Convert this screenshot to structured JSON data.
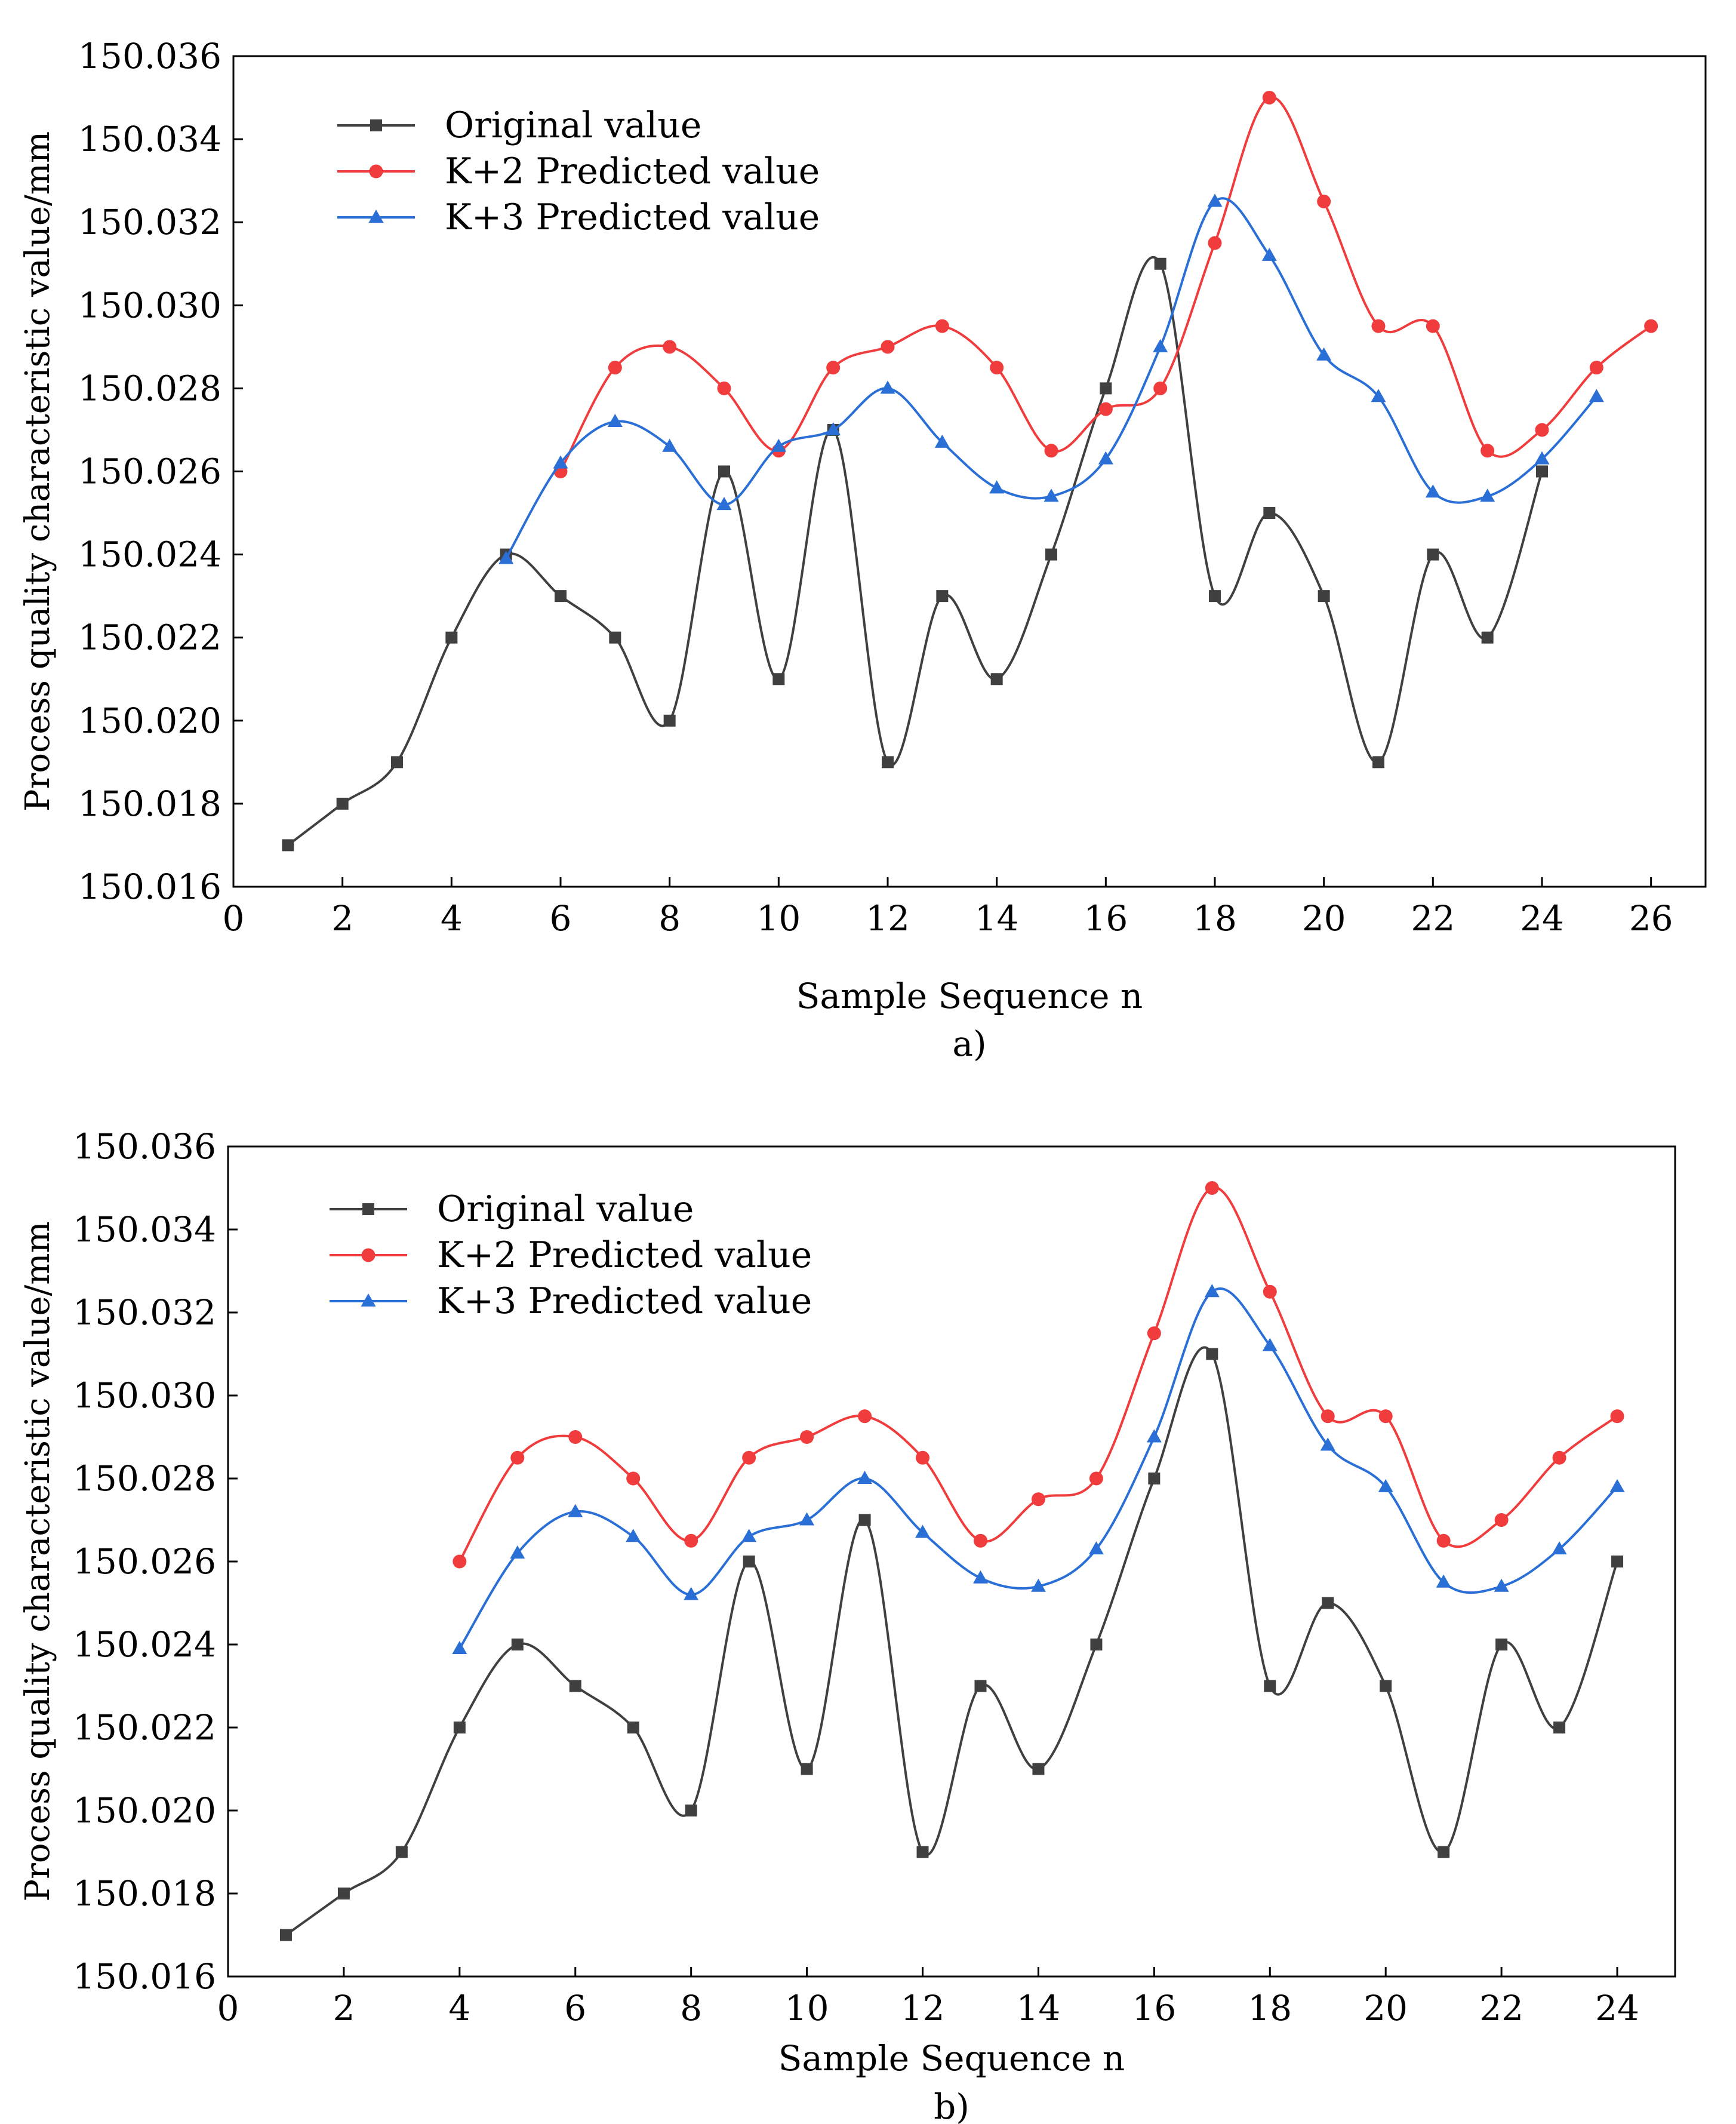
{
  "chart_data": [
    {
      "type": "line",
      "panel_label": "a)",
      "xlabel": "Sample Sequence n",
      "ylabel": "Process quality characteristic value/mm",
      "xlim": [
        0,
        27
      ],
      "ylim": [
        150.016,
        150.036
      ],
      "xticks": [
        0,
        2,
        4,
        6,
        8,
        10,
        12,
        14,
        16,
        18,
        20,
        22,
        24,
        26
      ],
      "yticks": [
        150.016,
        150.018,
        150.02,
        150.022,
        150.024,
        150.026,
        150.028,
        150.03,
        150.032,
        150.034,
        150.036
      ],
      "xtick_labels": [
        "0",
        "2",
        "4",
        "6",
        "8",
        "10",
        "12",
        "14",
        "16",
        "18",
        "20",
        "22",
        "24",
        "26"
      ],
      "ytick_labels": [
        "150.016",
        "150.018",
        "150.020",
        "150.022",
        "150.024",
        "150.026",
        "150.028",
        "150.030",
        "150.032",
        "150.034",
        "150.036"
      ],
      "legend_position": "top-left",
      "series": [
        {
          "name": "Original value",
          "color": "#404040",
          "marker": "square",
          "x": [
            1,
            2,
            3,
            4,
            5,
            6,
            7,
            8,
            9,
            10,
            11,
            12,
            13,
            14,
            15,
            16,
            17,
            18,
            19,
            20,
            21,
            22,
            23,
            24
          ],
          "values": [
            150.017,
            150.018,
            150.019,
            150.022,
            150.024,
            150.023,
            150.022,
            150.02,
            150.026,
            150.021,
            150.027,
            150.019,
            150.023,
            150.021,
            150.024,
            150.028,
            150.031,
            150.023,
            150.025,
            150.023,
            150.019,
            150.024,
            150.022,
            150.026
          ]
        },
        {
          "name": "K+2 Predicted value",
          "color": "#f03c3c",
          "marker": "circle",
          "x": [
            6,
            7,
            8,
            9,
            10,
            11,
            12,
            13,
            14,
            15,
            16,
            17,
            18,
            19,
            20,
            21,
            22,
            23,
            24,
            25,
            26
          ],
          "values": [
            150.026,
            150.0285,
            150.029,
            150.028,
            150.0265,
            150.0285,
            150.029,
            150.0295,
            150.0285,
            150.0265,
            150.0275,
            150.028,
            150.0315,
            150.035,
            150.0325,
            150.0295,
            150.0295,
            150.0265,
            150.027,
            150.0285,
            150.0295
          ]
        },
        {
          "name": "K+3 Predicted value",
          "color": "#2a6fd6",
          "marker": "triangle",
          "x": [
            5,
            6,
            7,
            8,
            9,
            10,
            11,
            12,
            13,
            14,
            15,
            16,
            17,
            18,
            19,
            20,
            21,
            22,
            23,
            24,
            25
          ],
          "values": [
            150.0239,
            150.0262,
            150.0272,
            150.0266,
            150.0252,
            150.0266,
            150.027,
            150.028,
            150.0267,
            150.0256,
            150.0254,
            150.0263,
            150.029,
            150.0325,
            150.0312,
            150.0288,
            150.0278,
            150.0255,
            150.0254,
            150.0263,
            150.0278
          ]
        }
      ]
    },
    {
      "type": "line",
      "panel_label": "b)",
      "xlabel": "Sample Sequence n",
      "ylabel": "Process quality characteristic value/mm",
      "xlim": [
        0,
        25
      ],
      "ylim": [
        150.016,
        150.036
      ],
      "xticks": [
        0,
        2,
        4,
        6,
        8,
        10,
        12,
        14,
        16,
        18,
        20,
        22,
        24
      ],
      "yticks": [
        150.016,
        150.018,
        150.02,
        150.022,
        150.024,
        150.026,
        150.028,
        150.03,
        150.032,
        150.034,
        150.036
      ],
      "xtick_labels": [
        "0",
        "2",
        "4",
        "6",
        "8",
        "10",
        "12",
        "14",
        "16",
        "18",
        "20",
        "22",
        "24"
      ],
      "ytick_labels": [
        "150.016",
        "150.018",
        "150.020",
        "150.022",
        "150.024",
        "150.026",
        "150.028",
        "150.030",
        "150.032",
        "150.034",
        "150.036"
      ],
      "legend_position": "top-left",
      "series": [
        {
          "name": "Original value",
          "color": "#404040",
          "marker": "square",
          "x": [
            1,
            2,
            3,
            4,
            5,
            6,
            7,
            8,
            9,
            10,
            11,
            12,
            13,
            14,
            15,
            16,
            17,
            18,
            19,
            20,
            21,
            22,
            23,
            24
          ],
          "values": [
            150.017,
            150.018,
            150.019,
            150.022,
            150.024,
            150.023,
            150.022,
            150.02,
            150.026,
            150.021,
            150.027,
            150.019,
            150.023,
            150.021,
            150.024,
            150.028,
            150.031,
            150.023,
            150.025,
            150.023,
            150.019,
            150.024,
            150.022,
            150.026
          ]
        },
        {
          "name": "K+2 Predicted value",
          "color": "#f03c3c",
          "marker": "circle",
          "x": [
            4,
            5,
            6,
            7,
            8,
            9,
            10,
            11,
            12,
            13,
            14,
            15,
            16,
            17,
            18,
            19,
            20,
            21,
            22,
            23,
            24
          ],
          "values": [
            150.026,
            150.0285,
            150.029,
            150.028,
            150.0265,
            150.0285,
            150.029,
            150.0295,
            150.0285,
            150.0265,
            150.0275,
            150.028,
            150.0315,
            150.035,
            150.0325,
            150.0295,
            150.0295,
            150.0265,
            150.027,
            150.0285,
            150.0295
          ]
        },
        {
          "name": "K+3 Predicted value",
          "color": "#2a6fd6",
          "marker": "triangle",
          "x": [
            4,
            5,
            6,
            7,
            8,
            9,
            10,
            11,
            12,
            13,
            14,
            15,
            16,
            17,
            18,
            19,
            20,
            21,
            22,
            23,
            24
          ],
          "values": [
            150.0239,
            150.0262,
            150.0272,
            150.0266,
            150.0252,
            150.0266,
            150.027,
            150.028,
            150.0267,
            150.0256,
            150.0254,
            150.0263,
            150.029,
            150.0325,
            150.0312,
            150.0288,
            150.0278,
            150.0255,
            150.0254,
            150.0263,
            150.0278
          ]
        }
      ]
    }
  ]
}
